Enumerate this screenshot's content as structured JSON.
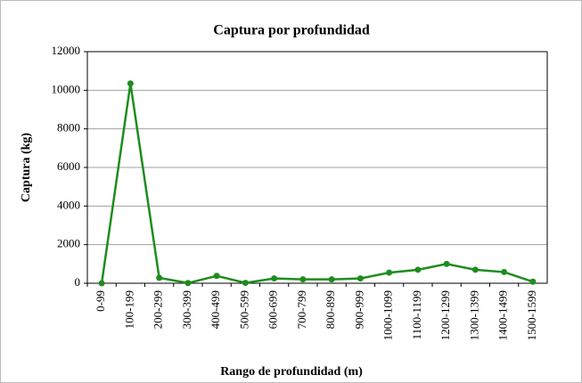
{
  "chart_data": {
    "type": "line",
    "title": "Captura por profundidad",
    "x_label": "Rango de profundidad (m)",
    "y_label": "Captura (kg)",
    "categories": [
      "0-99",
      "100-199",
      "200-299",
      "300-399",
      "400-499",
      "500-599",
      "600-699",
      "700-799",
      "800-899",
      "900-999",
      "1000-1099",
      "1100-1199",
      "1200-1299",
      "1300-1399",
      "1400-1499",
      "1500-1599"
    ],
    "series": [
      {
        "color": "#1f8c1f",
        "values": [
          0,
          10350,
          280,
          10,
          380,
          20,
          250,
          200,
          200,
          250,
          550,
          700,
          1000,
          700,
          580,
          80
        ]
      }
    ],
    "ylim": [
      0,
      12000
    ],
    "yticks": [
      0,
      2000,
      4000,
      6000,
      8000,
      10000,
      12000
    ],
    "grid": true
  }
}
